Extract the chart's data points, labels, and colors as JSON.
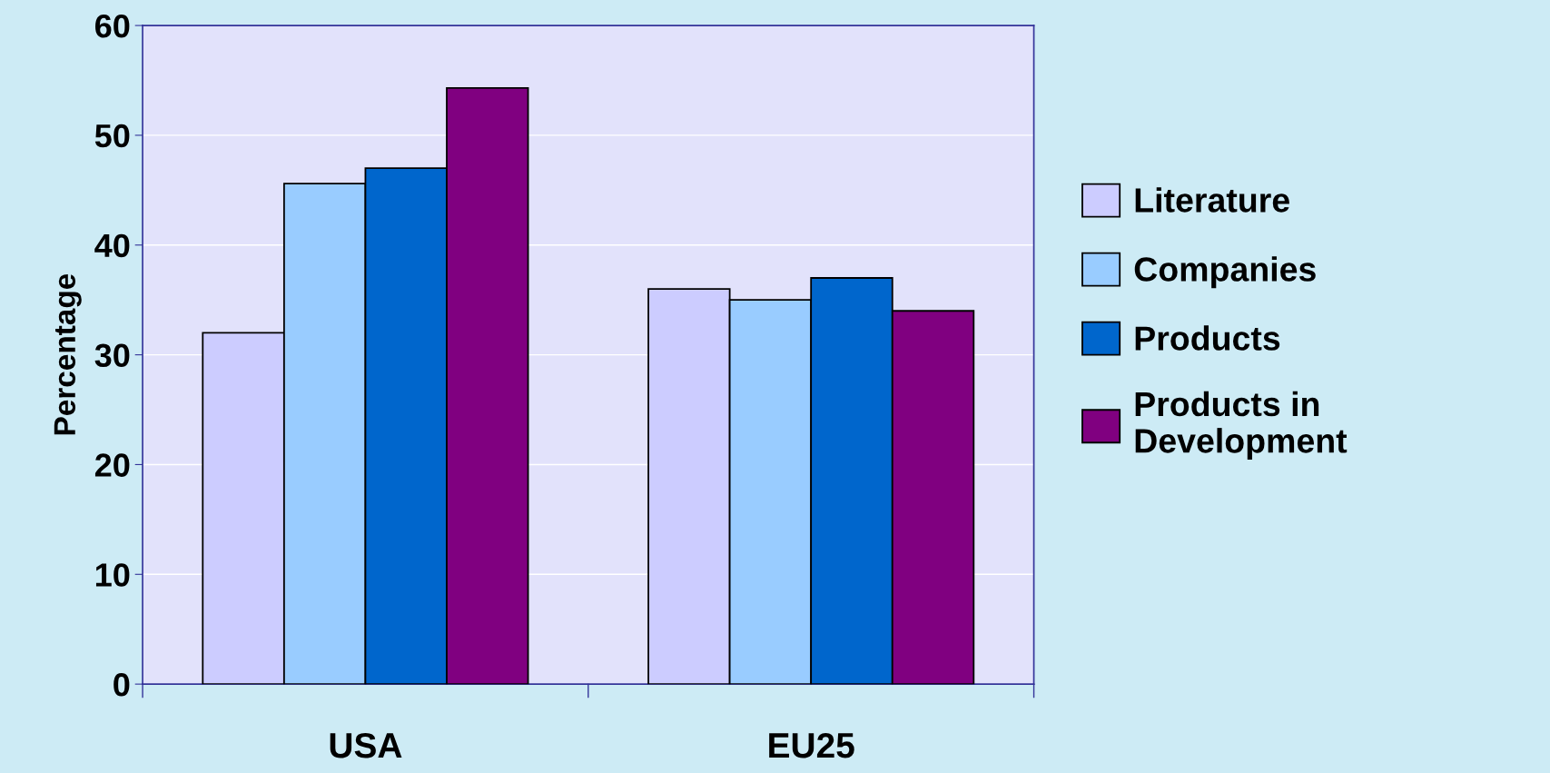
{
  "chart_data": {
    "type": "bar",
    "ylabel": "Percentage",
    "categories": [
      "USA",
      "EU25"
    ],
    "series": [
      {
        "name": "Literature",
        "color": "#ccccff",
        "values": [
          32,
          36
        ]
      },
      {
        "name": "Companies",
        "color": "#99ccff",
        "values": [
          45.6,
          35
        ]
      },
      {
        "name": "Products",
        "color": "#0066cc",
        "values": [
          47,
          37
        ]
      },
      {
        "name": "Products in\nDevelopment",
        "color": "#800080",
        "values": [
          54.3,
          34
        ]
      }
    ],
    "ylim": [
      0,
      60
    ],
    "yticks": [
      0,
      10,
      20,
      30,
      40,
      50,
      60
    ],
    "grid": "y",
    "legend": "right"
  }
}
